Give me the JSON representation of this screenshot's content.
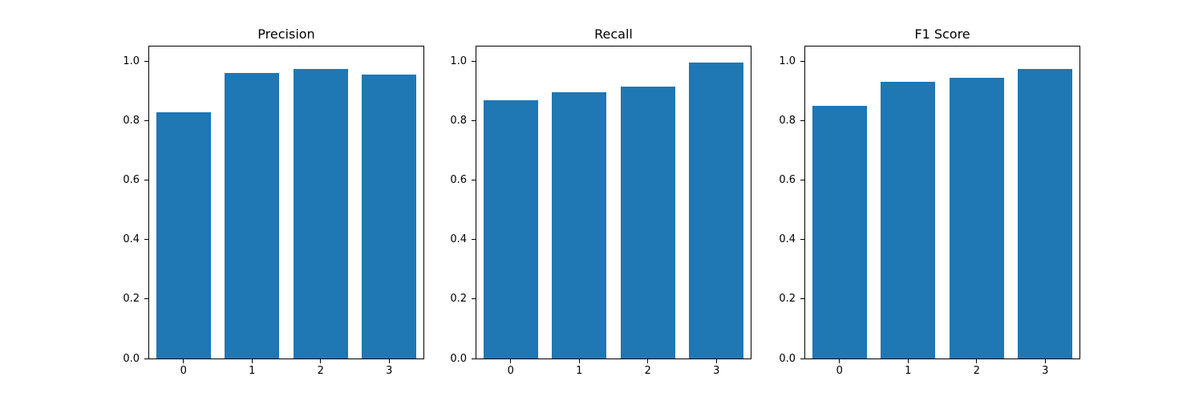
{
  "figure": {
    "background": "#ffffff",
    "bar_color": "#1f77b4"
  },
  "chart_data": [
    {
      "type": "bar",
      "title": "Precision",
      "categories": [
        "0",
        "1",
        "2",
        "3"
      ],
      "values": [
        0.83,
        0.96,
        0.975,
        0.955
      ],
      "xlabel": "",
      "ylabel": "",
      "ylim": [
        0,
        1.05
      ],
      "yticks": [
        0.0,
        0.2,
        0.4,
        0.6,
        0.8,
        1.0
      ],
      "ytick_labels": [
        "0.0",
        "0.2",
        "0.4",
        "0.6",
        "0.8",
        "1.0"
      ],
      "grid": false,
      "legend": false
    },
    {
      "type": "bar",
      "title": "Recall",
      "categories": [
        "0",
        "1",
        "2",
        "3"
      ],
      "values": [
        0.87,
        0.895,
        0.915,
        0.995
      ],
      "xlabel": "",
      "ylabel": "",
      "ylim": [
        0,
        1.05
      ],
      "yticks": [
        0.0,
        0.2,
        0.4,
        0.6,
        0.8,
        1.0
      ],
      "ytick_labels": [
        "0.0",
        "0.2",
        "0.4",
        "0.6",
        "0.8",
        "1.0"
      ],
      "grid": false,
      "legend": false
    },
    {
      "type": "bar",
      "title": "F1 Score",
      "categories": [
        "0",
        "1",
        "2",
        "3"
      ],
      "values": [
        0.85,
        0.93,
        0.945,
        0.975
      ],
      "xlabel": "",
      "ylabel": "",
      "ylim": [
        0,
        1.05
      ],
      "yticks": [
        0.0,
        0.2,
        0.4,
        0.6,
        0.8,
        1.0
      ],
      "ytick_labels": [
        "0.0",
        "0.2",
        "0.4",
        "0.6",
        "0.8",
        "1.0"
      ],
      "grid": false,
      "legend": false
    }
  ]
}
